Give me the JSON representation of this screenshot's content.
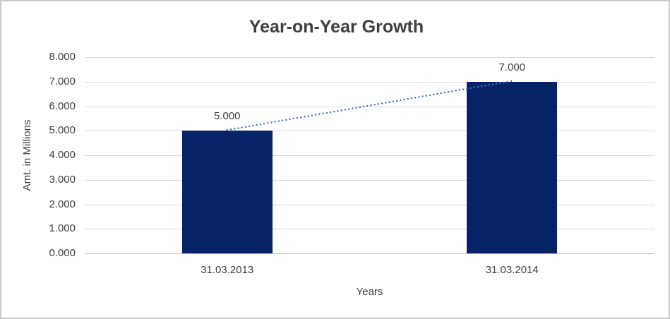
{
  "chart_data": {
    "type": "bar",
    "title": "Year-on-Year Growth",
    "xlabel": "Years",
    "ylabel": "Amt. in Millions",
    "categories": [
      "31.03.2013",
      "31.03.2014"
    ],
    "values": [
      5,
      7
    ],
    "data_labels": [
      "5.000",
      "7.000"
    ],
    "ylim": [
      0,
      8
    ],
    "ytick_step": 1,
    "ytick_labels": [
      "0.000",
      "1.000",
      "2.000",
      "3.000",
      "4.000",
      "5.000",
      "6.000",
      "7.000",
      "8.000"
    ],
    "grid": true,
    "legend": "none",
    "trendline": {
      "style": "dotted",
      "color": "#4472c4",
      "from": [
        5,
        7
      ]
    },
    "palette": {
      "bar_color": "#052366",
      "gridline_color": "#d9d9d9",
      "axis_line_color": "#bfbfbf",
      "text_color": "#404040",
      "title_color": "#3f3f3f",
      "border_color": "#c9c9c9"
    }
  }
}
